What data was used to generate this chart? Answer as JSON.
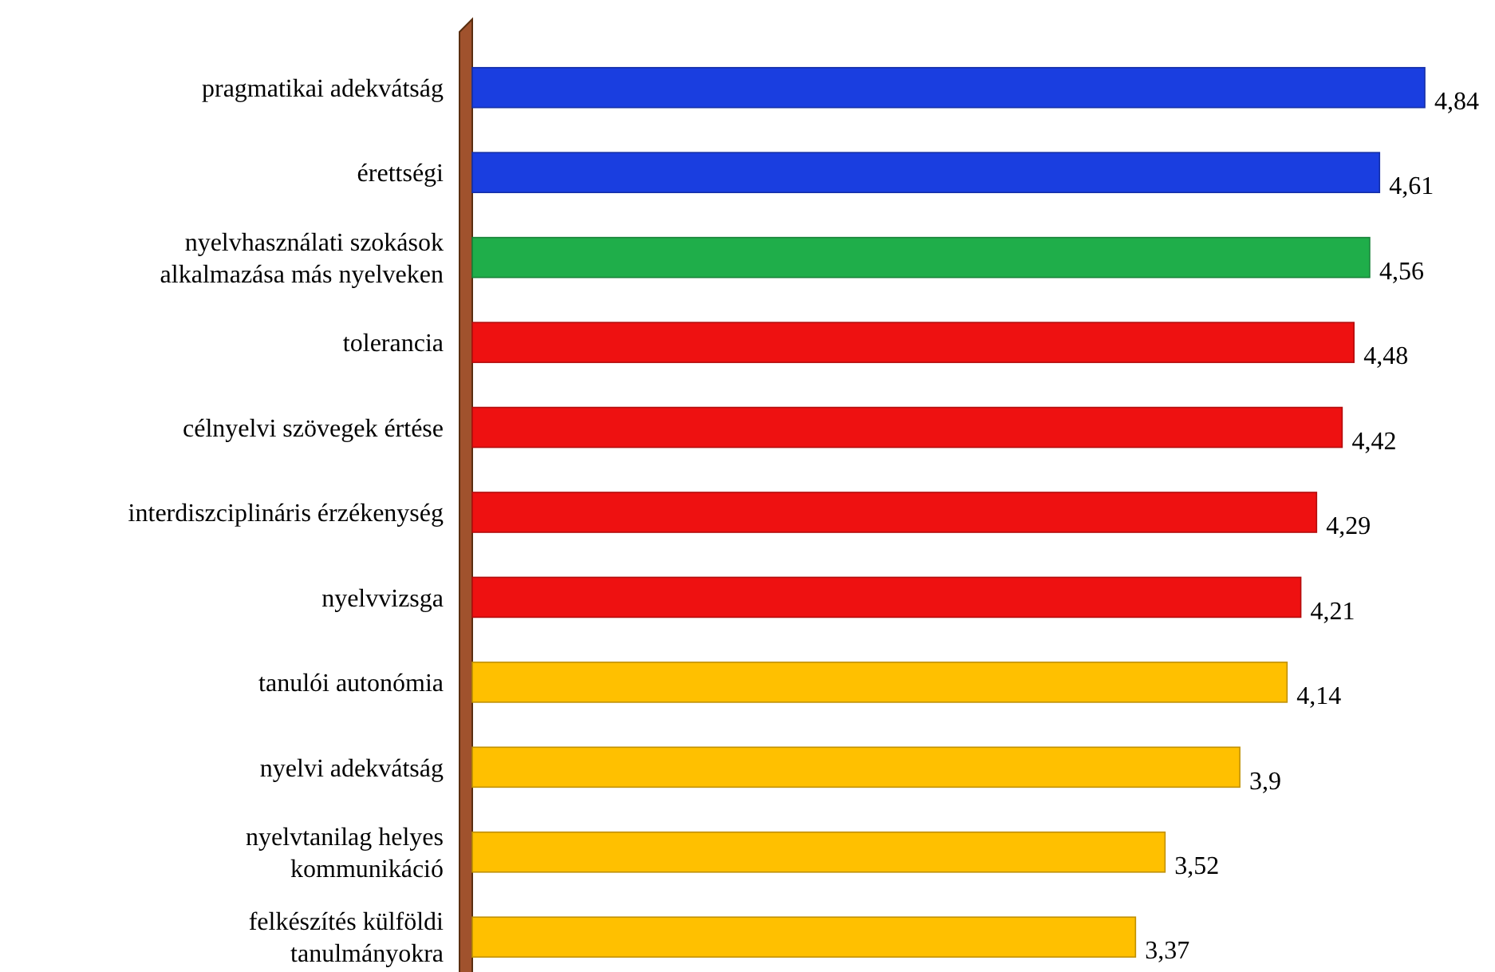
{
  "chart_data": {
    "type": "bar",
    "orientation": "horizontal",
    "data_labels": true,
    "categories": [
      "pragmatikai adekvátság",
      "érettségi",
      "nyelvhasználati szokások alkalmazása más nyelveken",
      "tolerancia",
      "célnyelvi szövegek értése",
      "interdiszciplináris érzékenység",
      "nyelvvizsga",
      "tanulói autonómia",
      "nyelvi adekvátság",
      "nyelvtanilag helyes kommunikáció",
      "felkészítés külföldi tanulmányokra"
    ],
    "values": [
      4.84,
      4.61,
      4.56,
      4.48,
      4.42,
      4.29,
      4.21,
      4.14,
      3.9,
      3.52,
      3.37
    ],
    "value_labels": [
      "4,84",
      "4,61",
      "4,56",
      "4,48",
      "4,42",
      "4,29",
      "4,21",
      "4,14",
      "3,9",
      "3,52",
      "3,37"
    ],
    "colors": [
      "#1a3ee0",
      "#1a3ee0",
      "#1fae4a",
      "#ee1111",
      "#ee1111",
      "#ee1111",
      "#ee1111",
      "#ffc000",
      "#ffc000",
      "#ffc000",
      "#ffc000"
    ]
  }
}
